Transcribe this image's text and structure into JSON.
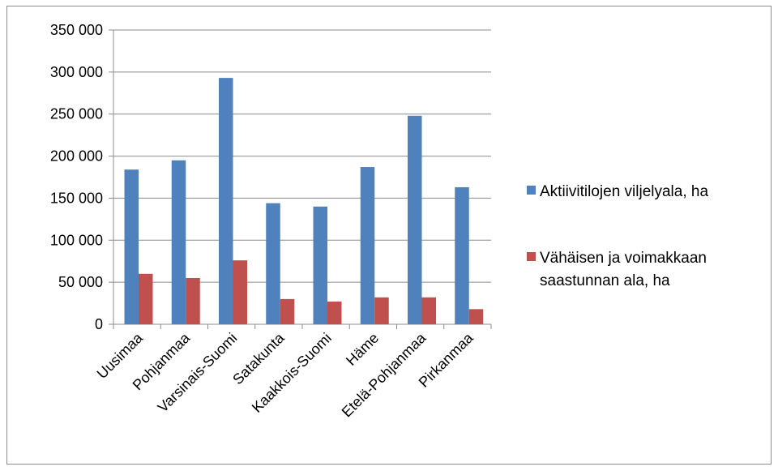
{
  "chart_data": {
    "type": "bar",
    "categories": [
      "Uusimaa",
      "Pohjanmaa",
      "Varsinais-Suomi",
      "Satakunta",
      "Kaakkois-Suomi",
      "Häme",
      "Etelä-Pohjanmaa",
      "Pirkanmaa"
    ],
    "series": [
      {
        "name": "Aktiivitilojen viljelyala, ha",
        "color": "#4f81bd",
        "values": [
          184000,
          195000,
          293000,
          144000,
          140000,
          187000,
          248000,
          163000
        ]
      },
      {
        "name": "Vähäisen ja voimakkaan saastunnan ala, ha",
        "color": "#c0504d",
        "values": [
          60000,
          55000,
          76000,
          30000,
          27000,
          32000,
          32000,
          18000
        ]
      }
    ],
    "ylim": [
      0,
      350000
    ],
    "yticks": [
      0,
      50000,
      100000,
      150000,
      200000,
      250000,
      300000,
      350000
    ],
    "ytick_labels": [
      "0",
      "50 000",
      "100 000",
      "150 000",
      "200 000",
      "250 000",
      "300 000",
      "350 000"
    ],
    "grid": true,
    "legend_position": "right",
    "legend_lines": [
      [
        "Aktiivitilojen viljelyala, ha"
      ],
      [
        "Vähäisen ja voimakkaan",
        "saastunnan ala, ha"
      ]
    ]
  }
}
